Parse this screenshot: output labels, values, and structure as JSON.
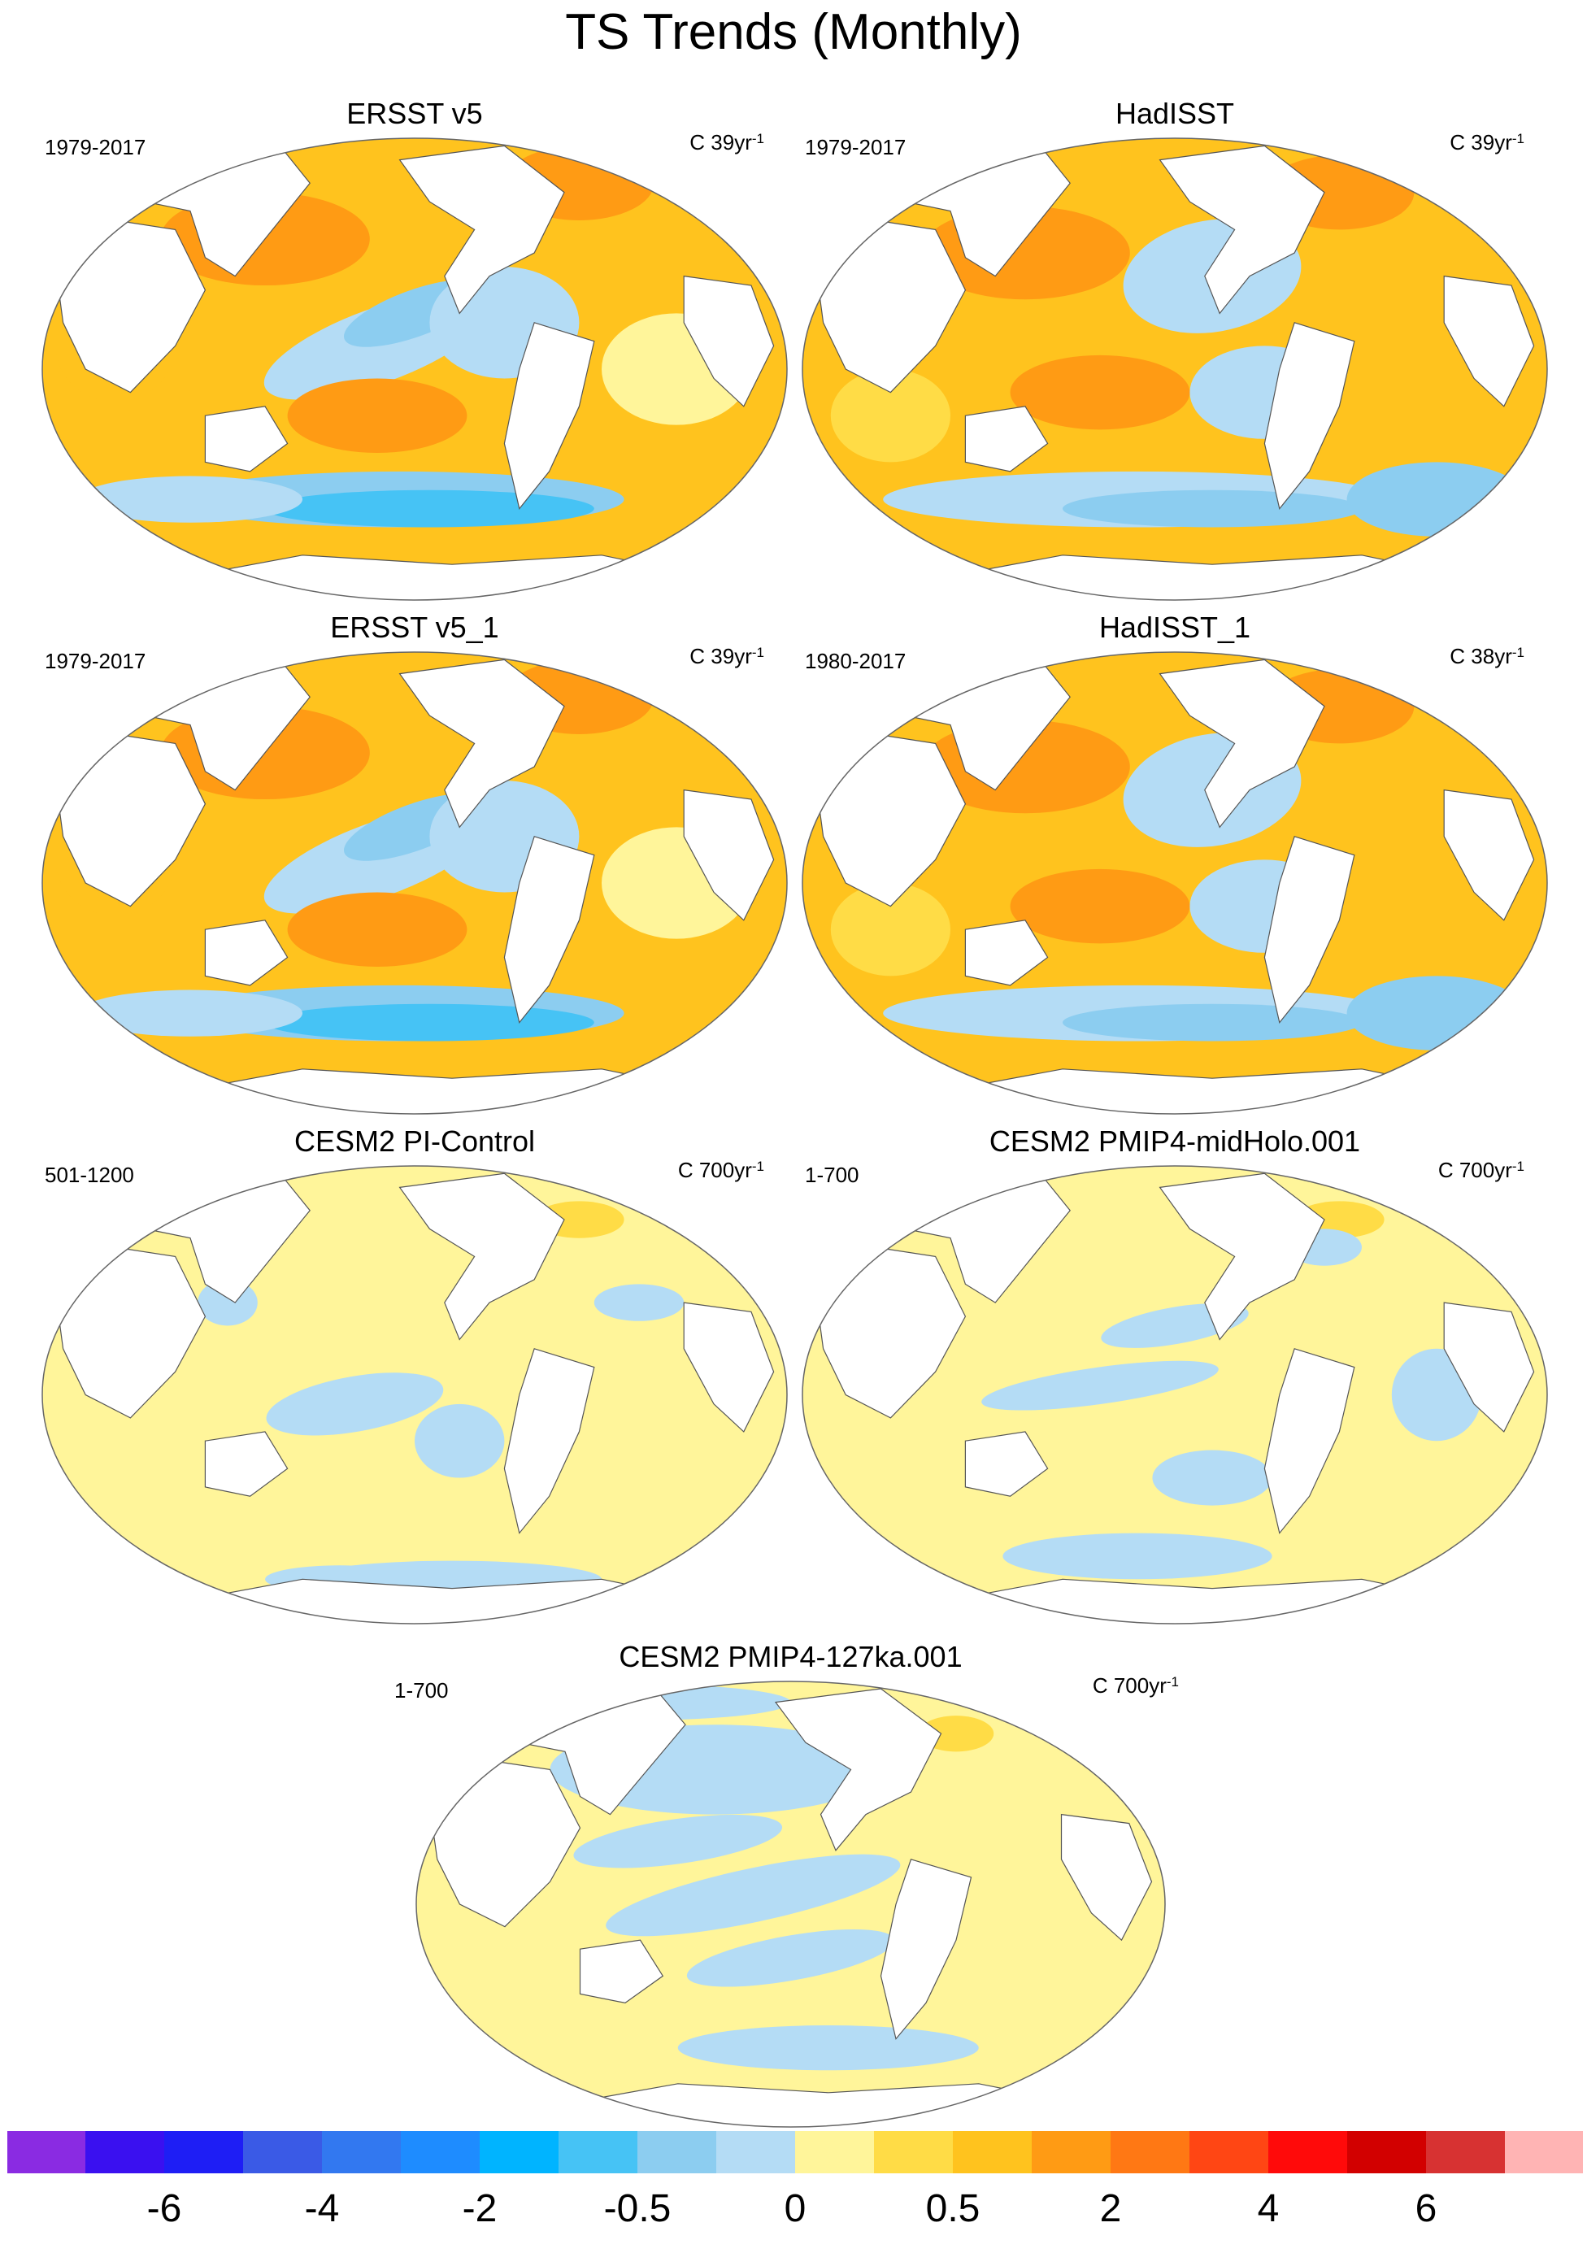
{
  "figure": {
    "title": "TS Trends (Monthly)"
  },
  "panels": [
    {
      "title": "ERSST v5",
      "period": "1979-2017",
      "units_prefix": "C 39yr",
      "units_exp": "-1",
      "pattern": "obs1"
    },
    {
      "title": "HadISST",
      "period": "1979-2017",
      "units_prefix": "C 39yr",
      "units_exp": "-1",
      "pattern": "obs2"
    },
    {
      "title": "ERSST v5_1",
      "period": "1979-2017",
      "units_prefix": "C 39yr",
      "units_exp": "-1",
      "pattern": "obs1"
    },
    {
      "title": "HadISST_1",
      "period": "1980-2017",
      "units_prefix": "C 38yr",
      "units_exp": "-1",
      "pattern": "obs2"
    },
    {
      "title": "CESM2 PI-Control",
      "period": "501-1200",
      "units_prefix": "C 700yr",
      "units_exp": "-1",
      "pattern": "model1"
    },
    {
      "title": "CESM2 PMIP4-midHolo.001",
      "period": "1-700",
      "units_prefix": "C 700yr",
      "units_exp": "-1",
      "pattern": "model2"
    },
    {
      "title": "CESM2 PMIP4-127ka.001",
      "period": "1-700",
      "units_prefix": "C 700yr",
      "units_exp": "-1",
      "pattern": "model3"
    }
  ],
  "colorbar": {
    "colors": [
      "#8a2be2",
      "#3a10f0",
      "#1e1ef5",
      "#3a5ae6",
      "#3278f0",
      "#1e8cff",
      "#00b4ff",
      "#46c3f5",
      "#8ccdf0",
      "#b4dcf5",
      "#fff59a",
      "#ffdc46",
      "#ffc31e",
      "#ff9b14",
      "#ff7814",
      "#ff4614",
      "#ff0a0a",
      "#d20000",
      "#d73232",
      "#ffb4b4"
    ],
    "labels": [
      "-6",
      "-4",
      "-2",
      "-0.5",
      "0",
      "0.5",
      "2",
      "4",
      "6"
    ]
  },
  "palette": {
    "land": "#ffffff",
    "coast": "#555555",
    "warm_strong": "#ff9b14",
    "warm": "#ffc31e",
    "warm_light": "#ffdc46",
    "neutral_warm": "#fff59a",
    "neutral_cool": "#b4dcf5",
    "cool": "#8ccdf0",
    "cool_strong": "#46c3f5"
  }
}
